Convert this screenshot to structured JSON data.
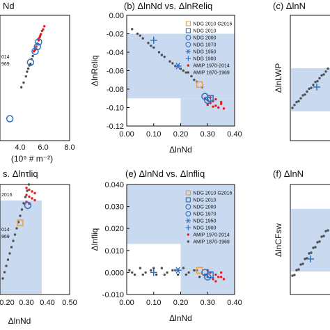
{
  "colors": {
    "shade": "#c9d9ef",
    "ndg_2010_g2016": "#f0a040",
    "ndg": "#2f6fc4",
    "amip_recent": "#e02020",
    "amip_early": "#505050",
    "axis": "#111111"
  },
  "legend_entries": [
    {
      "label": "NDG 2010 G2016",
      "marker": "square-open",
      "color": "#f0a040"
    },
    {
      "label": "NDG 2010",
      "marker": "square-open",
      "color": "#2f6fc4"
    },
    {
      "label": "NDG 2000",
      "marker": "circle-open",
      "color": "#2f6fc4"
    },
    {
      "label": "NDG 1970",
      "marker": "circle-open",
      "color": "#2f6fc4"
    },
    {
      "label": "NDG 1950",
      "marker": "star",
      "color": "#2f6fc4"
    },
    {
      "label": "NDG 1900",
      "marker": "plus",
      "color": "#2f6fc4"
    },
    {
      "label": "AMIP 1970-2014",
      "marker": "dot",
      "color": "#e02020"
    },
    {
      "label": "AMIP 1870-1969",
      "marker": "dot",
      "color": "#505050"
    }
  ],
  "chart_data": [
    {
      "id": "a",
      "type": "scatter",
      "title": "Nd",
      "xlabel": "(10⁹ # m⁻²)",
      "ylabel": "",
      "x_ticks": [
        "4.0",
        "6.0",
        "8.0"
      ],
      "y_ticks": [],
      "legend_fragments": [
        "014",
        "969"
      ],
      "shading": false,
      "series": [
        {
          "name": "AMIP 1970-2014",
          "points": [
            [
              5.3,
              5.4
            ],
            [
              5.4,
              5.5
            ],
            [
              5.5,
              5.6
            ],
            [
              5.6,
              5.7
            ],
            [
              5.7,
              5.8
            ],
            [
              5.8,
              5.9
            ],
            [
              5.9,
              6.0
            ],
            [
              6.0,
              6.05
            ],
            [
              6.1,
              6.15
            ],
            [
              5.2,
              5.35
            ],
            [
              5.6,
              5.75
            ],
            [
              5.75,
              5.85
            ]
          ]
        },
        {
          "name": "AMIP 1870-1969",
          "points": [
            [
              4.1,
              4.2
            ],
            [
              4.3,
              4.35
            ],
            [
              4.5,
              4.55
            ],
            [
              4.7,
              4.8
            ],
            [
              4.9,
              4.95
            ],
            [
              5.0,
              5.1
            ],
            [
              5.1,
              5.2
            ],
            [
              4.6,
              4.7
            ],
            [
              4.8,
              4.9
            ]
          ]
        },
        {
          "name": "NDG",
          "points": [
            [
              4.9,
              5.0
            ],
            [
              5.3,
              5.35
            ],
            [
              5.5,
              5.5
            ],
            [
              5.6,
              5.65
            ],
            [
              3.1,
              3.2
            ]
          ]
        }
      ]
    },
    {
      "id": "b",
      "type": "scatter",
      "title": "(b) ΔlnNd vs. ΔlnReliq",
      "xlabel": "ΔlnNd",
      "ylabel": "ΔlnReliq",
      "xlim": [
        0.0,
        0.4
      ],
      "ylim": [
        -0.12,
        0.0
      ],
      "x_ticks": [
        "0.00",
        "0.10",
        "0.20",
        "0.30",
        "0.40"
      ],
      "y_ticks": [
        "0.00",
        "-0.02",
        "-0.04",
        "-0.06",
        "-0.08",
        "-0.10",
        "-0.12"
      ],
      "shading": true,
      "series": [
        {
          "name": "AMIP 1870-1969",
          "points": [
            [
              0.02,
              -0.015
            ],
            [
              0.04,
              -0.02
            ],
            [
              0.06,
              -0.025
            ],
            [
              0.08,
              -0.03
            ],
            [
              0.1,
              -0.035
            ],
            [
              0.12,
              -0.04
            ],
            [
              0.14,
              -0.045
            ],
            [
              0.16,
              -0.05
            ],
            [
              0.18,
              -0.055
            ],
            [
              0.2,
              -0.058
            ],
            [
              0.22,
              -0.062
            ],
            [
              0.24,
              -0.066
            ],
            [
              0.26,
              -0.072
            ],
            [
              0.28,
              -0.078
            ],
            [
              0.05,
              -0.022
            ],
            [
              0.09,
              -0.033
            ],
            [
              0.13,
              -0.043
            ],
            [
              0.17,
              -0.052
            ],
            [
              0.21,
              -0.06
            ],
            [
              0.25,
              -0.07
            ]
          ]
        },
        {
          "name": "AMIP 1970-2014",
          "points": [
            [
              0.29,
              -0.09
            ],
            [
              0.3,
              -0.092
            ],
            [
              0.31,
              -0.095
            ],
            [
              0.32,
              -0.093
            ],
            [
              0.33,
              -0.098
            ],
            [
              0.34,
              -0.1
            ],
            [
              0.35,
              -0.096
            ],
            [
              0.36,
              -0.101
            ],
            [
              0.31,
              -0.089
            ],
            [
              0.33,
              -0.091
            ],
            [
              0.35,
              -0.094
            ],
            [
              0.3,
              -0.097
            ],
            [
              0.32,
              -0.099
            ]
          ]
        },
        {
          "name": "NDG 2010 G2016",
          "points": [
            [
              0.27,
              -0.075
            ]
          ]
        },
        {
          "name": "NDG 2010",
          "points": [
            [
              0.31,
              -0.09
            ]
          ]
        },
        {
          "name": "NDG 2000",
          "points": [
            [
              0.3,
              -0.092
            ]
          ]
        },
        {
          "name": "NDG 1970",
          "points": [
            [
              0.29,
              -0.088
            ]
          ]
        },
        {
          "name": "NDG 1950",
          "points": [
            [
              0.19,
              -0.055
            ]
          ]
        },
        {
          "name": "NDG 1900",
          "points": [
            [
              0.1,
              -0.027
            ]
          ]
        }
      ]
    },
    {
      "id": "c",
      "type": "scatter",
      "title": "(c) ΔlnN",
      "xlabel": "",
      "ylabel": "ΔlnLWP",
      "x_ticks": [],
      "y_ticks": [],
      "shading": true,
      "series": []
    },
    {
      "id": "d",
      "type": "scatter",
      "title": "s. Δlnτliq",
      "xlabel": "ΔlnNd",
      "ylabel": "",
      "x_ticks": [
        "0.20",
        "0.30",
        "0.40",
        "0.50"
      ],
      "y_ticks": [],
      "legend_fragments": [
        "2016",
        "014",
        "969"
      ],
      "shading": true,
      "series": []
    },
    {
      "id": "e",
      "type": "scatter",
      "title": "(e) ΔlnNd vs. Δlnfliq",
      "xlabel": "ΔlnNd",
      "ylabel": "Δlnfliq",
      "xlim": [
        0.0,
        0.4
      ],
      "ylim": [
        -0.01,
        0.04
      ],
      "x_ticks": [
        "0.00",
        "0.10",
        "0.20",
        "0.30",
        "0.40"
      ],
      "y_ticks": [
        "0.040",
        "0.030",
        "0.020",
        "0.010",
        "0.000",
        "-0.010"
      ],
      "shading": true,
      "series": [
        {
          "name": "AMIP 1870-1969",
          "points": [
            [
              0.01,
              0.001
            ],
            [
              0.03,
              -0.001
            ],
            [
              0.05,
              0.002
            ],
            [
              0.07,
              0.0
            ],
            [
              0.09,
              0.001
            ],
            [
              0.11,
              -0.001
            ],
            [
              0.13,
              0.002
            ],
            [
              0.15,
              0.0
            ],
            [
              0.17,
              0.001
            ],
            [
              0.19,
              -0.001
            ],
            [
              0.21,
              0.002
            ],
            [
              0.23,
              0.0
            ],
            [
              0.25,
              0.001
            ],
            [
              0.27,
              -0.002
            ],
            [
              0.02,
              0.0
            ],
            [
              0.06,
              -0.001
            ],
            [
              0.1,
              0.002
            ],
            [
              0.14,
              -0.001
            ],
            [
              0.18,
              0.001
            ],
            [
              0.22,
              -0.001
            ],
            [
              0.26,
              0.001
            ]
          ]
        },
        {
          "name": "AMIP 1970-2014",
          "points": [
            [
              0.29,
              -0.001
            ],
            [
              0.3,
              -0.002
            ],
            [
              0.31,
              0.0
            ],
            [
              0.32,
              -0.003
            ],
            [
              0.33,
              -0.001
            ],
            [
              0.34,
              -0.002
            ],
            [
              0.35,
              0.0
            ],
            [
              0.36,
              -0.003
            ],
            [
              0.3,
              0.001
            ],
            [
              0.33,
              -0.004
            ],
            [
              0.35,
              -0.002
            ]
          ]
        },
        {
          "name": "NDG 2010 G2016",
          "points": [
            [
              0.27,
              0.001
            ]
          ]
        },
        {
          "name": "NDG 2010",
          "points": [
            [
              0.31,
              -0.001
            ]
          ]
        },
        {
          "name": "NDG 2000",
          "points": [
            [
              0.3,
              -0.002
            ]
          ]
        },
        {
          "name": "NDG 1970",
          "points": [
            [
              0.29,
              0.0
            ]
          ]
        },
        {
          "name": "NDG 1950",
          "points": [
            [
              0.19,
              0.001
            ]
          ]
        },
        {
          "name": "NDG 1900",
          "points": [
            [
              0.1,
              0.0
            ]
          ]
        }
      ]
    },
    {
      "id": "f",
      "type": "scatter",
      "title": "(f) ΔlnN",
      "xlabel": "",
      "ylabel": "ΔlnCFsw",
      "x_ticks": [],
      "y_ticks": [],
      "shading": true,
      "series": []
    }
  ]
}
